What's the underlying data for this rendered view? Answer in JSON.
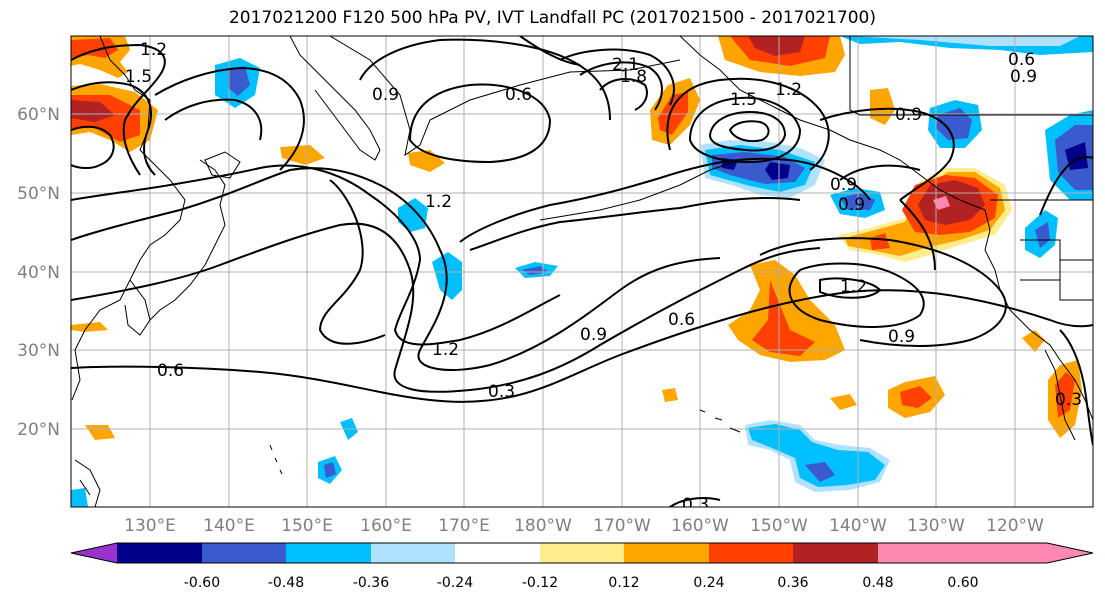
{
  "title": "2017021200 F120 500 hPa PV, IVT Landfall PC (2017021500 - 2017021700)",
  "lat_labels": [
    "60°N",
    "50°N",
    "40°N",
    "30°N",
    "20°N"
  ],
  "lon_labels": [
    "130°E",
    "140°E",
    "150°E",
    "160°E",
    "170°E",
    "180°W",
    "170°W",
    "160°W",
    "150°W",
    "140°W",
    "130°W",
    "120°W"
  ],
  "colorbar": {
    "colors": [
      "#9932cc",
      "#00008b",
      "#3a5bcd",
      "#00bfff",
      "#b0e2ff",
      "#ffffff",
      "#ffec8b",
      "#ffa500",
      "#ff4000",
      "#b22222",
      "#ff88b3"
    ],
    "tick_labels": [
      "-0.60",
      "-0.48",
      "-0.36",
      "-0.24",
      "-0.12",
      "0.12",
      "0.24",
      "0.36",
      "0.48",
      "0.60"
    ]
  },
  "contour_labels": [
    "1.2",
    "1.5",
    "0.9",
    "0.6",
    "2.1",
    "1.8",
    "1.5",
    "1.2",
    "0.9",
    "1.2",
    "1.2",
    "0.9",
    "0.6",
    "1.2",
    "0.9",
    "0.6",
    "0.3",
    "0.3",
    "0.3",
    "0.9",
    "0.9",
    "0.6",
    "0.9"
  ],
  "contour_colors": {
    "line": "#000000",
    "grid": "#b0b0b0",
    "coast": "#000000"
  }
}
